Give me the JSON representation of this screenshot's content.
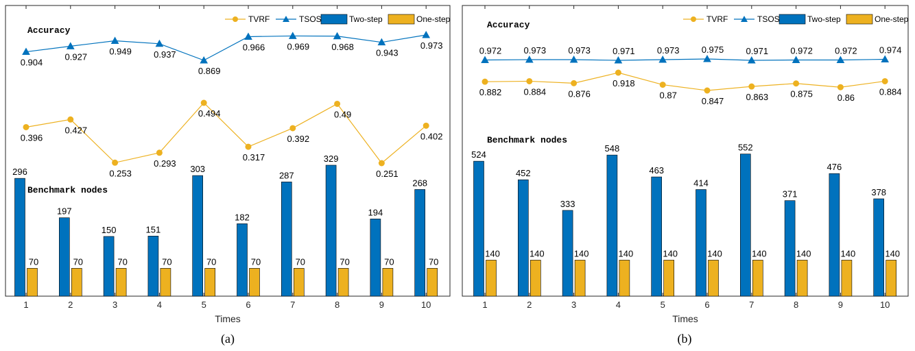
{
  "colors": {
    "tvrf": "#EDB120",
    "tsos": "#0072BD",
    "two_step": "#0072BD",
    "one_step": "#EDB120",
    "axis": "#262626"
  },
  "chart_data": [
    {
      "type": "bar",
      "caption": "(a)",
      "xlabel": "Times",
      "categories": [
        "1",
        "2",
        "3",
        "4",
        "5",
        "6",
        "7",
        "8",
        "9",
        "10"
      ],
      "annotations": {
        "accuracy": "Accuracy",
        "benchmark": "Benchmark nodes"
      },
      "legend": {
        "position": "top-right",
        "entries": [
          "TVRF",
          "TSOS",
          "Two-step",
          "One-step"
        ]
      },
      "lines": [
        {
          "name": "TVRF",
          "marker": "circle",
          "values": [
            0.396,
            0.427,
            0.253,
            0.293,
            0.494,
            0.317,
            0.392,
            0.49,
            0.251,
            0.402
          ]
        },
        {
          "name": "TSOS",
          "marker": "triangle",
          "values": [
            0.904,
            0.927,
            0.949,
            0.937,
            0.869,
            0.966,
            0.969,
            0.968,
            0.943,
            0.973
          ]
        }
      ],
      "bars": [
        {
          "name": "Two-step",
          "values": [
            296,
            197,
            150,
            151,
            303,
            182,
            287,
            329,
            194,
            268
          ]
        },
        {
          "name": "One-step",
          "values": [
            70,
            70,
            70,
            70,
            70,
            70,
            70,
            70,
            70,
            70
          ]
        }
      ]
    },
    {
      "type": "bar",
      "caption": "(b)",
      "xlabel": "Times",
      "categories": [
        "1",
        "2",
        "3",
        "4",
        "5",
        "6",
        "7",
        "8",
        "9",
        "10"
      ],
      "annotations": {
        "accuracy": "Accuracy",
        "benchmark": "Benchmark nodes"
      },
      "legend": {
        "position": "top-right",
        "entries": [
          "TVRF",
          "TSOS",
          "Two-step",
          "One-step"
        ]
      },
      "lines": [
        {
          "name": "TVRF",
          "marker": "circle",
          "values": [
            0.882,
            0.884,
            0.876,
            0.918,
            0.87,
            0.847,
            0.863,
            0.875,
            0.86,
            0.884
          ]
        },
        {
          "name": "TSOS",
          "marker": "triangle",
          "values": [
            0.972,
            0.973,
            0.973,
            0.971,
            0.973,
            0.975,
            0.971,
            0.972,
            0.972,
            0.974
          ]
        }
      ],
      "bars": [
        {
          "name": "Two-step",
          "values": [
            524,
            452,
            333,
            548,
            463,
            414,
            552,
            371,
            476,
            378
          ]
        },
        {
          "name": "One-step",
          "values": [
            140,
            140,
            140,
            140,
            140,
            140,
            140,
            140,
            140,
            140
          ]
        }
      ]
    }
  ]
}
